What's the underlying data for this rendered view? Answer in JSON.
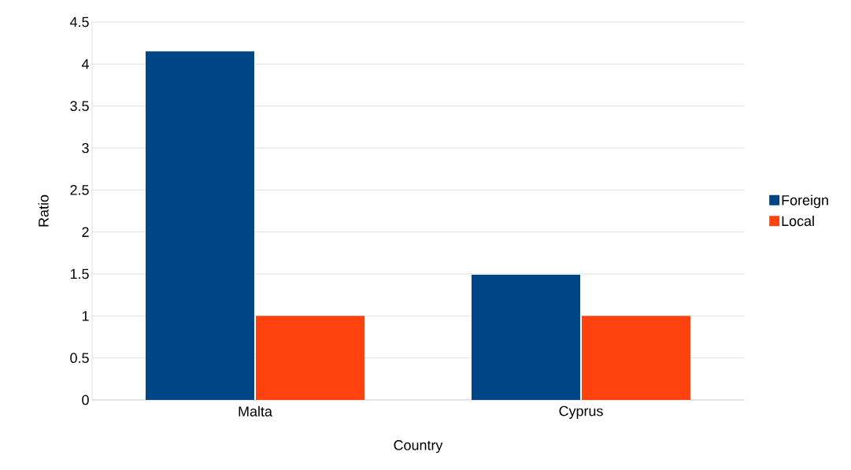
{
  "chart_data": {
    "type": "bar",
    "xlabel": "Country",
    "ylabel": "Ratio",
    "categories": [
      "Malta",
      "Cyprus"
    ],
    "series": [
      {
        "name": "Foreign",
        "color": "#004586",
        "values": [
          4.15,
          1.49
        ]
      },
      {
        "name": "Local",
        "color": "#ff420e",
        "values": [
          1,
          1
        ]
      }
    ],
    "ylim": [
      0,
      4.5
    ],
    "yticks": [
      0,
      0.5,
      1,
      1.5,
      2,
      2.5,
      3,
      3.5,
      4,
      4.5
    ],
    "grid": "y",
    "legend": "right"
  }
}
